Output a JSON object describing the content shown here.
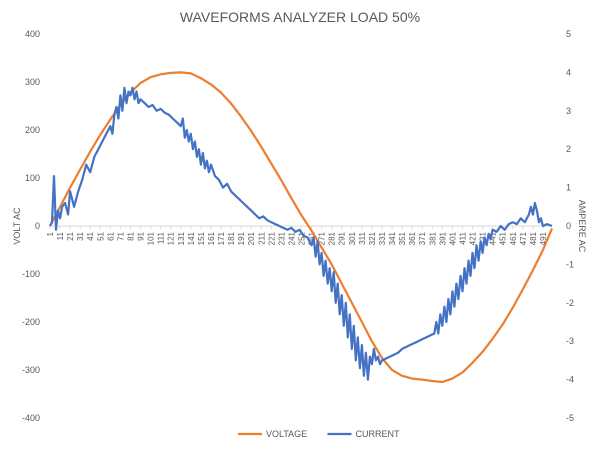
{
  "chart_data": {
    "type": "line",
    "title": "WAVEFORMS ANALYZER LOAD 50%",
    "ylabel_left": "VOLT AC",
    "ylabel_right": "AMPERE AC",
    "xlabel": "",
    "x_range": [
      1,
      500
    ],
    "x_ticks": [
      1,
      11,
      21,
      31,
      41,
      51,
      61,
      71,
      81,
      91,
      101,
      111,
      121,
      131,
      141,
      151,
      161,
      171,
      181,
      191,
      201,
      211,
      221,
      231,
      241,
      251,
      261,
      271,
      281,
      291,
      301,
      311,
      321,
      331,
      341,
      351,
      361,
      371,
      381,
      391,
      401,
      411,
      421,
      431,
      441,
      451,
      461,
      471,
      481,
      491
    ],
    "ylim_left": [
      -400,
      400
    ],
    "y_ticks_left": [
      -400,
      -300,
      -200,
      -100,
      0,
      100,
      200,
      300,
      400
    ],
    "ylim_right": [
      -5,
      5
    ],
    "y_ticks_right": [
      -5,
      -4,
      -3,
      -2,
      -1,
      0,
      1,
      2,
      3,
      4,
      5
    ],
    "grid": false,
    "legend_position": "bottom",
    "series": [
      {
        "name": "VOLTAGE",
        "axis": "left",
        "color": "#ED7D31",
        "points": [
          [
            1,
            0
          ],
          [
            11,
            40
          ],
          [
            21,
            80
          ],
          [
            31,
            118
          ],
          [
            41,
            155
          ],
          [
            51,
            190
          ],
          [
            61,
            222
          ],
          [
            71,
            252
          ],
          [
            81,
            278
          ],
          [
            91,
            298
          ],
          [
            101,
            310
          ],
          [
            111,
            316
          ],
          [
            121,
            319
          ],
          [
            131,
            320
          ],
          [
            141,
            318
          ],
          [
            151,
            308
          ],
          [
            161,
            295
          ],
          [
            171,
            278
          ],
          [
            181,
            255
          ],
          [
            191,
            228
          ],
          [
            201,
            198
          ],
          [
            211,
            165
          ],
          [
            221,
            130
          ],
          [
            231,
            95
          ],
          [
            241,
            58
          ],
          [
            251,
            22
          ],
          [
            261,
            -10
          ],
          [
            271,
            -45
          ],
          [
            281,
            -80
          ],
          [
            291,
            -120
          ],
          [
            301,
            -160
          ],
          [
            311,
            -200
          ],
          [
            321,
            -240
          ],
          [
            331,
            -275
          ],
          [
            341,
            -300
          ],
          [
            351,
            -312
          ],
          [
            361,
            -318
          ],
          [
            371,
            -320
          ],
          [
            381,
            -323
          ],
          [
            391,
            -325
          ],
          [
            401,
            -318
          ],
          [
            411,
            -305
          ],
          [
            421,
            -285
          ],
          [
            431,
            -262
          ],
          [
            441,
            -235
          ],
          [
            451,
            -205
          ],
          [
            461,
            -170
          ],
          [
            471,
            -132
          ],
          [
            481,
            -92
          ],
          [
            491,
            -50
          ],
          [
            500,
            -5
          ]
        ]
      },
      {
        "name": "CURRENT",
        "axis": "right",
        "color": "#4472C4",
        "points": [
          [
            1,
            0
          ],
          [
            3,
            0.1
          ],
          [
            5,
            1.3
          ],
          [
            7,
            -0.1
          ],
          [
            9,
            0.4
          ],
          [
            11,
            0.2
          ],
          [
            13,
            0.5
          ],
          [
            16,
            0.6
          ],
          [
            19,
            0.3
          ],
          [
            21,
            0.9
          ],
          [
            25,
            0.5
          ],
          [
            29,
            0.9
          ],
          [
            33,
            1.2
          ],
          [
            37,
            1.6
          ],
          [
            41,
            1.4
          ],
          [
            45,
            1.8
          ],
          [
            49,
            2.0
          ],
          [
            53,
            2.2
          ],
          [
            57,
            2.4
          ],
          [
            61,
            2.6
          ],
          [
            63,
            2.4
          ],
          [
            65,
            2.9
          ],
          [
            67,
            3.1
          ],
          [
            69,
            2.8
          ],
          [
            71,
            3.4
          ],
          [
            73,
            3.0
          ],
          [
            75,
            3.6
          ],
          [
            77,
            3.2
          ],
          [
            79,
            3.5
          ],
          [
            81,
            3.4
          ],
          [
            83,
            3.6
          ],
          [
            85,
            3.3
          ],
          [
            87,
            3.5
          ],
          [
            89,
            3.2
          ],
          [
            91,
            3.3
          ],
          [
            95,
            3.2
          ],
          [
            99,
            3.1
          ],
          [
            103,
            3.15
          ],
          [
            107,
            3.0
          ],
          [
            111,
            3.05
          ],
          [
            115,
            2.95
          ],
          [
            119,
            2.9
          ],
          [
            123,
            2.8
          ],
          [
            127,
            2.7
          ],
          [
            131,
            2.6
          ],
          [
            133,
            2.8
          ],
          [
            135,
            2.3
          ],
          [
            137,
            2.5
          ],
          [
            139,
            2.2
          ],
          [
            141,
            2.4
          ],
          [
            143,
            2.0
          ],
          [
            145,
            2.2
          ],
          [
            147,
            1.8
          ],
          [
            149,
            2.0
          ],
          [
            151,
            1.6
          ],
          [
            153,
            1.9
          ],
          [
            155,
            1.5
          ],
          [
            157,
            1.7
          ],
          [
            159,
            1.4
          ],
          [
            161,
            1.6
          ],
          [
            165,
            1.3
          ],
          [
            169,
            1.2
          ],
          [
            173,
            1.0
          ],
          [
            177,
            1.1
          ],
          [
            181,
            0.9
          ],
          [
            185,
            0.8
          ],
          [
            189,
            0.7
          ],
          [
            193,
            0.6
          ],
          [
            197,
            0.5
          ],
          [
            201,
            0.4
          ],
          [
            205,
            0.3
          ],
          [
            209,
            0.2
          ],
          [
            213,
            0.25
          ],
          [
            217,
            0.15
          ],
          [
            221,
            0.1
          ],
          [
            225,
            0.05
          ],
          [
            229,
            0.0
          ],
          [
            233,
            -0.05
          ],
          [
            237,
            -0.1
          ],
          [
            241,
            -0.05
          ],
          [
            245,
            -0.15
          ],
          [
            249,
            -0.1
          ],
          [
            253,
            -0.25
          ],
          [
            257,
            -0.3
          ],
          [
            261,
            -0.5
          ],
          [
            263,
            -0.3
          ],
          [
            265,
            -0.8
          ],
          [
            267,
            -0.4
          ],
          [
            269,
            -1.0
          ],
          [
            271,
            -0.7
          ],
          [
            273,
            -1.3
          ],
          [
            275,
            -0.9
          ],
          [
            277,
            -1.5
          ],
          [
            279,
            -1.1
          ],
          [
            281,
            -1.7
          ],
          [
            283,
            -1.2
          ],
          [
            285,
            -2.0
          ],
          [
            287,
            -1.5
          ],
          [
            289,
            -2.3
          ],
          [
            291,
            -1.8
          ],
          [
            293,
            -2.6
          ],
          [
            295,
            -2.0
          ],
          [
            297,
            -2.9
          ],
          [
            299,
            -2.3
          ],
          [
            301,
            -3.2
          ],
          [
            303,
            -2.6
          ],
          [
            305,
            -3.5
          ],
          [
            307,
            -2.9
          ],
          [
            309,
            -3.7
          ],
          [
            311,
            -3.1
          ],
          [
            313,
            -3.9
          ],
          [
            315,
            -3.3
          ],
          [
            317,
            -4.0
          ],
          [
            319,
            -3.4
          ],
          [
            321,
            -3.6
          ],
          [
            323,
            -3.2
          ],
          [
            325,
            -3.5
          ],
          [
            327,
            -3.4
          ],
          [
            329,
            -3.6
          ],
          [
            331,
            -3.5
          ],
          [
            335,
            -3.45
          ],
          [
            339,
            -3.4
          ],
          [
            343,
            -3.35
          ],
          [
            347,
            -3.3
          ],
          [
            351,
            -3.2
          ],
          [
            355,
            -3.15
          ],
          [
            359,
            -3.1
          ],
          [
            363,
            -3.05
          ],
          [
            367,
            -3.0
          ],
          [
            371,
            -2.95
          ],
          [
            375,
            -2.9
          ],
          [
            379,
            -2.85
          ],
          [
            383,
            -2.8
          ],
          [
            385,
            -2.5
          ],
          [
            387,
            -2.8
          ],
          [
            389,
            -2.3
          ],
          [
            391,
            -2.6
          ],
          [
            393,
            -2.1
          ],
          [
            395,
            -2.5
          ],
          [
            397,
            -1.9
          ],
          [
            399,
            -2.3
          ],
          [
            401,
            -1.7
          ],
          [
            403,
            -2.1
          ],
          [
            405,
            -1.5
          ],
          [
            407,
            -1.9
          ],
          [
            409,
            -1.3
          ],
          [
            411,
            -1.7
          ],
          [
            413,
            -1.1
          ],
          [
            415,
            -1.5
          ],
          [
            417,
            -0.9
          ],
          [
            419,
            -1.3
          ],
          [
            421,
            -0.7
          ],
          [
            423,
            -1.1
          ],
          [
            425,
            -0.5
          ],
          [
            427,
            -0.9
          ],
          [
            429,
            -0.4
          ],
          [
            431,
            -0.7
          ],
          [
            433,
            -0.3
          ],
          [
            435,
            -0.5
          ],
          [
            437,
            -0.2
          ],
          [
            439,
            -0.35
          ],
          [
            441,
            -0.1
          ],
          [
            445,
            -0.15
          ],
          [
            449,
            0.0
          ],
          [
            453,
            -0.1
          ],
          [
            457,
            0.05
          ],
          [
            461,
            0.1
          ],
          [
            465,
            0.05
          ],
          [
            469,
            0.2
          ],
          [
            473,
            0.1
          ],
          [
            477,
            0.3
          ],
          [
            479,
            0.5
          ],
          [
            481,
            0.3
          ],
          [
            483,
            0.6
          ],
          [
            485,
            0.4
          ],
          [
            487,
            0.1
          ],
          [
            489,
            0.2
          ],
          [
            491,
            0.0
          ],
          [
            495,
            0.05
          ],
          [
            500,
            0.0
          ]
        ]
      }
    ]
  }
}
